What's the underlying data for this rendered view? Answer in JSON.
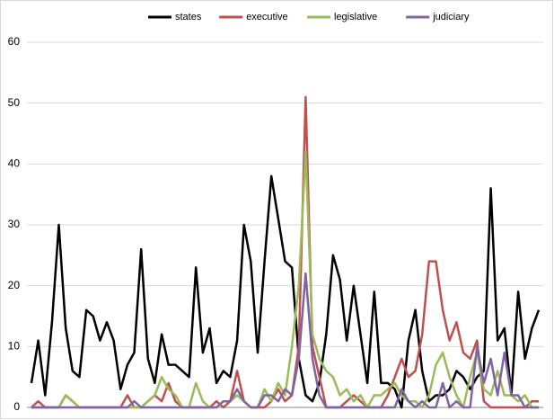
{
  "chart_data": {
    "type": "line",
    "series": [
      {
        "name": "states",
        "color": "#000000",
        "values": [
          4,
          11,
          2,
          14,
          30,
          13,
          6,
          5,
          16,
          15,
          11,
          14,
          11,
          3,
          7,
          9,
          26,
          8,
          4,
          12,
          7,
          7,
          6,
          5,
          23,
          9,
          13,
          4,
          6,
          5,
          11,
          30,
          24,
          9,
          24,
          38,
          31,
          24,
          23,
          8,
          2,
          1,
          4,
          12,
          25,
          21,
          11,
          20,
          12,
          4,
          19,
          4,
          4,
          3,
          0,
          11,
          16,
          6,
          1,
          2,
          2,
          3,
          6,
          5,
          3,
          5,
          6,
          36,
          11,
          13,
          2,
          19,
          8,
          13,
          16
        ]
      },
      {
        "name": "executive",
        "color": "#c0504d",
        "values": [
          0,
          1,
          0,
          0,
          0,
          2,
          1,
          0,
          0,
          0,
          0,
          0,
          0,
          0,
          2,
          0,
          0,
          1,
          2,
          1,
          4,
          1,
          0,
          0,
          0,
          0,
          0,
          1,
          0,
          1,
          6,
          1,
          0,
          0,
          0,
          1,
          3,
          1,
          2,
          10,
          51,
          10,
          5,
          0,
          0,
          0,
          1,
          2,
          1,
          0,
          0,
          0,
          2,
          5,
          8,
          5,
          6,
          12,
          24,
          24,
          16,
          11,
          14,
          9,
          8,
          11,
          1,
          0,
          0,
          0,
          0,
          0,
          0,
          1,
          1
        ]
      },
      {
        "name": "legislative",
        "color": "#9bbb59",
        "values": [
          0,
          0,
          0,
          0,
          0,
          2,
          1,
          0,
          0,
          0,
          0,
          0,
          0,
          0,
          0,
          0,
          0,
          1,
          2,
          5,
          3,
          2,
          0,
          0,
          4,
          1,
          0,
          0,
          1,
          1,
          2,
          1,
          0,
          0,
          3,
          1,
          4,
          2,
          10,
          20,
          42,
          12,
          8,
          6,
          5,
          2,
          3,
          1,
          2,
          0,
          2,
          2,
          3,
          4,
          2,
          1,
          1,
          0,
          2,
          7,
          9,
          5,
          2,
          0,
          5,
          9,
          3,
          2,
          6,
          2,
          2,
          1,
          2,
          0,
          0
        ]
      },
      {
        "name": "judiciary",
        "color": "#8064a2",
        "values": [
          0,
          0,
          0,
          0,
          0,
          0,
          0,
          0,
          0,
          0,
          0,
          0,
          0,
          0,
          0,
          1,
          0,
          0,
          0,
          0,
          0,
          0,
          0,
          0,
          0,
          0,
          0,
          0,
          1,
          1,
          3,
          1,
          0,
          0,
          2,
          2,
          1,
          3,
          2,
          8,
          22,
          8,
          2,
          0,
          0,
          0,
          0,
          0,
          0,
          0,
          0,
          0,
          0,
          0,
          3,
          1,
          0,
          1,
          0,
          0,
          4,
          0,
          1,
          0,
          0,
          10,
          4,
          8,
          2,
          9,
          2,
          2,
          0,
          0,
          0
        ]
      }
    ],
    "ylim": [
      0,
      60
    ],
    "yticks": [
      0,
      10,
      20,
      30,
      40,
      50,
      60
    ],
    "grid": true,
    "legend": "top"
  }
}
